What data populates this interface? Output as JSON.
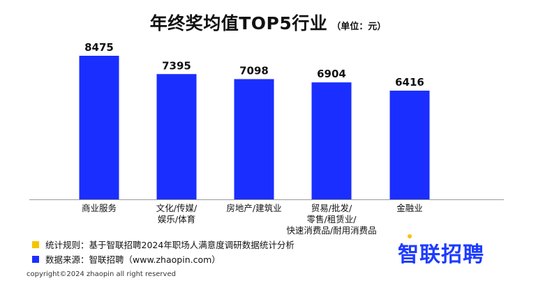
{
  "colors": {
    "bar": "#1a2eff",
    "note_square": "#f5c400",
    "source_square": "#1a2eff",
    "brand": "#1d3bff",
    "axis": "#999999"
  },
  "chart_data": {
    "type": "bar",
    "title": "年终奖均值TOP5行业",
    "unit": "（单位：元）",
    "categories": [
      [
        "商业服务"
      ],
      [
        "文化/传媒/",
        "娱乐/体育"
      ],
      [
        "房地产/建筑业"
      ],
      [
        "贸易/批发/",
        "零售/租赁业/",
        "快速消费品/耐用消费品"
      ],
      [
        "金融业"
      ]
    ],
    "values": [
      8475,
      7395,
      7098,
      6904,
      6416
    ],
    "ylim": [
      0,
      8475
    ],
    "data_labels": true,
    "grid": false
  },
  "footer": {
    "rule_text": "统计规则：基于智联招聘2024年职场人满意度调研数据统计分析",
    "source_text": "数据来源：智联招聘（www.zhaopin.com）",
    "brand": "智联招聘",
    "copyright": "copyright©2024 zhaopin all right reserved"
  }
}
